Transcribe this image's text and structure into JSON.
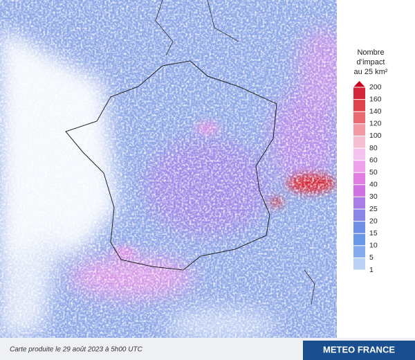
{
  "legend": {
    "title": [
      "Nombre",
      "d’impact",
      "au 25 km²"
    ],
    "ticks": [
      "200",
      "160",
      "140",
      "120",
      "100",
      "80",
      "60",
      "50",
      "40",
      "30",
      "25",
      "20",
      "15",
      "10",
      "5",
      "1"
    ],
    "colors": [
      "#d4263a",
      "#e0424c",
      "#ea6a72",
      "#f19aa6",
      "#f5bfd2",
      "#f4c4ee",
      "#eea0ea",
      "#e27fe3",
      "#cf72e2",
      "#a97ce6",
      "#8a87e8",
      "#6f8ee6",
      "#6a97e8",
      "#86aaee",
      "#bcd2f4"
    ],
    "arrow_color": "#c8001e"
  },
  "footer": {
    "caption": "Carte produite le 29 août 2023 à 5h00 UTC",
    "brand": "METEO FRANCE"
  }
}
